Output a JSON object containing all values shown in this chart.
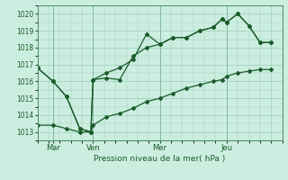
{
  "xlabel": "Pression niveau de la mer( hPa )",
  "bg_color": "#cceee0",
  "grid_color": "#99ccbb",
  "line_color": "#1a5c2a",
  "vline_color": "#4a8a6a",
  "xlim": [
    0,
    11
  ],
  "ylim": [
    1012.5,
    1020.5
  ],
  "yticks": [
    1013,
    1014,
    1015,
    1016,
    1017,
    1018,
    1019,
    1020
  ],
  "xtick_positions": [
    0.7,
    2.5,
    5.5,
    8.5,
    10.5
  ],
  "xtick_labels": [
    "Mar",
    "Ven",
    "Mer",
    "Jeu",
    ""
  ],
  "day_lines": [
    0.7,
    2.5,
    5.5,
    8.5
  ],
  "series1_x": [
    0.0,
    0.7,
    1.3,
    1.9,
    2.4,
    2.5,
    3.1,
    3.7,
    4.3,
    4.9,
    5.5,
    6.1,
    6.7,
    7.3,
    7.9,
    8.3,
    8.5,
    9.0,
    9.5,
    10.0,
    10.5
  ],
  "series1_y": [
    1016.8,
    1016.0,
    1015.1,
    1013.2,
    1013.0,
    1016.1,
    1016.2,
    1016.1,
    1017.5,
    1018.0,
    1018.2,
    1018.6,
    1018.6,
    1019.0,
    1019.2,
    1019.7,
    1019.5,
    1020.0,
    1019.3,
    1018.3,
    1018.3
  ],
  "series2_x": [
    0.0,
    0.7,
    1.3,
    1.9,
    2.4,
    2.5,
    3.1,
    3.7,
    4.3,
    4.9,
    5.5,
    6.1,
    6.7,
    7.3,
    7.9,
    8.3,
    8.5,
    9.0,
    9.5,
    10.0,
    10.5
  ],
  "series2_y": [
    1016.8,
    1016.0,
    1015.1,
    1013.2,
    1013.0,
    1016.1,
    1016.5,
    1016.8,
    1017.3,
    1018.8,
    1018.2,
    1018.6,
    1018.6,
    1019.0,
    1019.2,
    1019.7,
    1019.5,
    1020.0,
    1019.3,
    1018.3,
    1018.3
  ],
  "series3_x": [
    0.0,
    0.7,
    1.3,
    1.9,
    2.4,
    2.5,
    3.1,
    3.7,
    4.3,
    4.9,
    5.5,
    6.1,
    6.7,
    7.3,
    7.9,
    8.3,
    8.5,
    9.0,
    9.5,
    10.0,
    10.5
  ],
  "series3_y": [
    1013.4,
    1013.4,
    1013.2,
    1013.0,
    1013.0,
    1013.4,
    1013.9,
    1014.1,
    1014.4,
    1014.8,
    1015.0,
    1015.3,
    1015.6,
    1015.8,
    1016.0,
    1016.1,
    1016.3,
    1016.5,
    1016.6,
    1016.7,
    1016.7
  ]
}
